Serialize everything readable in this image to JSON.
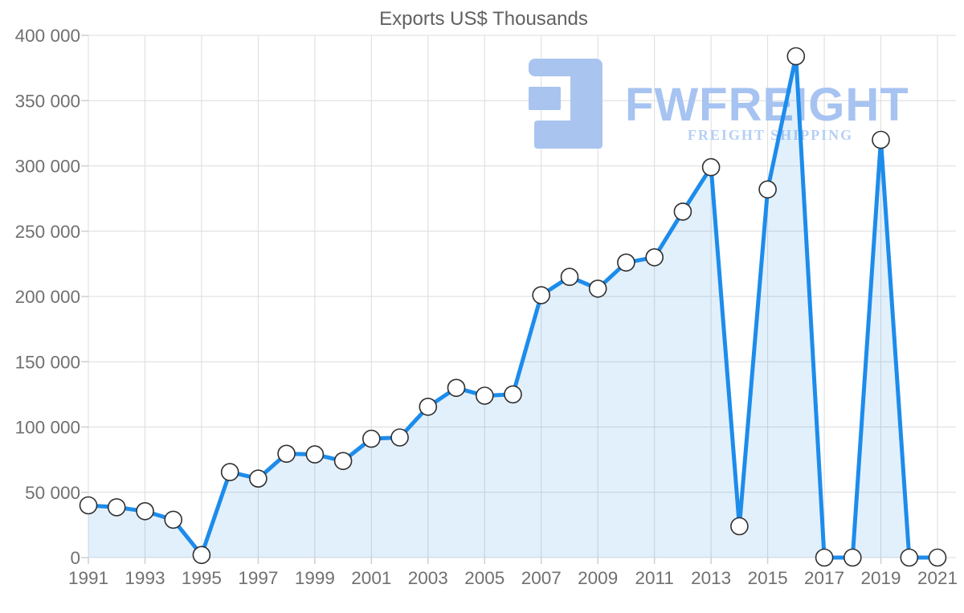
{
  "chart_data": {
    "type": "area",
    "title": "Exports US$ Thousands",
    "xlabel": "",
    "ylabel": "",
    "x": [
      1991,
      1992,
      1993,
      1994,
      1995,
      1996,
      1997,
      1998,
      1999,
      2000,
      2001,
      2002,
      2003,
      2004,
      2005,
      2006,
      2007,
      2008,
      2009,
      2010,
      2011,
      2012,
      2013,
      2014,
      2015,
      2016,
      2017,
      2018,
      2019,
      2020,
      2021
    ],
    "values": [
      40000,
      38500,
      35500,
      29000,
      2000,
      65500,
      60500,
      79500,
      79000,
      74000,
      91000,
      92000,
      115500,
      130000,
      124000,
      125000,
      201000,
      215000,
      206000,
      226000,
      230000,
      265000,
      299000,
      24000,
      282000,
      384000,
      0,
      0,
      320000,
      0,
      0
    ],
    "series_name": "Exports US$ Thousands",
    "ylim": [
      0,
      400000
    ],
    "ytick_values": [
      0,
      50000,
      100000,
      150000,
      200000,
      250000,
      300000,
      350000,
      400000
    ],
    "ytick_labels": [
      "0",
      "50 000",
      "100 000",
      "150 000",
      "200 000",
      "250 000",
      "300 000",
      "350 000",
      "400 000"
    ],
    "xtick_years": [
      1991,
      1993,
      1995,
      1997,
      1999,
      2001,
      2003,
      2005,
      2007,
      2009,
      2011,
      2013,
      2015,
      2017,
      2019,
      2021
    ],
    "grid": true,
    "legend": "none",
    "colors": {
      "line": "#1d8ceb",
      "area": "rgba(30,140,235,0.13)",
      "marker_fill": "#ffffff",
      "marker_stroke": "#2f2f2f",
      "grid": "#dcdcdc",
      "tick": "#cfcfcf",
      "axis_label": "#707070",
      "title": "#616161"
    }
  },
  "logo": {
    "brand": "FWFREIGHT",
    "tagline": "FREIGHT SHIPPING",
    "mark_color": "#a9c4ef",
    "brand_color": "#a6c3f1",
    "tagline_color": "#b5cff6"
  }
}
